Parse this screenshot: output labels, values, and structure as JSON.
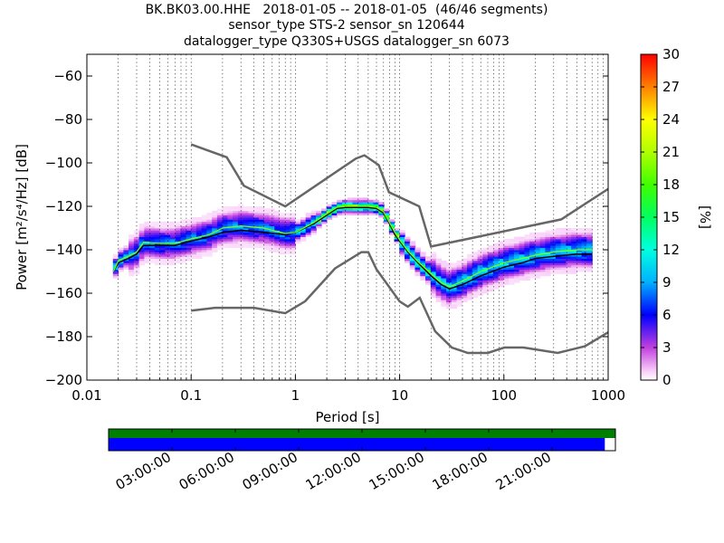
{
  "title_lines": [
    "BK.BK03.00.HHE   2018-01-05 -- 2018-01-05  (46/46 segments)",
    "sensor_type STS-2 sensor_sn 120644",
    "datalogger_type Q330S+USGS datalogger_sn 6073"
  ],
  "colors": {
    "model_curves": "#666666",
    "mean_line": "#000000",
    "mode_line": "#7fff00",
    "coverage_data": "#0000ff",
    "coverage_full": "#008000"
  },
  "chart_data": [
    {
      "type": "heatmap",
      "chart": "probabilistic power spectral density",
      "xlabel": "Period [s]",
      "ylabel": "Power [m²/s⁴/Hz] [dB]",
      "xscale": "log",
      "xlim": [
        0.01,
        1000
      ],
      "ylim": [
        -200,
        -50
      ],
      "xticks": [
        0.01,
        0.1,
        1,
        10,
        100,
        1000
      ],
      "xtick_labels": [
        "0.01",
        "0.1",
        "1",
        "10",
        "100",
        "1000"
      ],
      "yticks": [
        -200,
        -180,
        -160,
        -140,
        -120,
        -100,
        -80,
        -60
      ],
      "ytick_labels": [
        "−200",
        "−180",
        "−160",
        "−140",
        "−120",
        "−100",
        "−80",
        "−60"
      ],
      "grid": "dotted vertical",
      "colorbar": {
        "label": "[%]",
        "range": [
          0,
          30
        ],
        "ticks": [
          "0",
          "3",
          "6",
          "9",
          "12",
          "15",
          "18",
          "21",
          "24",
          "27",
          "30"
        ],
        "colormap": "pqlx"
      },
      "series": [
        {
          "line": "high-noise-model",
          "x": [
            0.1,
            0.22,
            0.32,
            0.8,
            3.8,
            4.6,
            6.3,
            7.9,
            15.4,
            20,
            354.8,
            1000
          ],
          "y": [
            -91.5,
            -97.4,
            -110.5,
            -120,
            -98,
            -96.5,
            -101,
            -113.5,
            -120,
            -138.5,
            -126,
            -112
          ]
        },
        {
          "line": "low-noise-model",
          "x": [
            0.1,
            0.17,
            0.4,
            0.8,
            1.24,
            2.4,
            4.3,
            5,
            6,
            10,
            12,
            15.6,
            21.9,
            31.6,
            45,
            70,
            101,
            154,
            328,
            600,
            1000
          ],
          "y": [
            -168,
            -166.7,
            -166.7,
            -169.2,
            -163.7,
            -148.6,
            -141.1,
            -141.1,
            -149,
            -163.8,
            -166.2,
            -162.1,
            -177.5,
            -185,
            -187.5,
            -187.5,
            -185,
            -185,
            -187.5,
            -184.4,
            -178
          ]
        },
        {
          "line": "mean",
          "x": [
            0.018,
            0.02,
            0.025,
            0.03,
            0.035,
            0.05,
            0.07,
            0.1,
            0.15,
            0.2,
            0.3,
            0.5,
            0.8,
            1,
            1.5,
            2,
            2.5,
            3,
            5,
            6,
            7,
            8,
            9,
            10,
            12,
            15,
            20,
            25,
            30,
            40,
            60,
            100,
            150,
            200,
            300,
            500,
            700
          ],
          "y": [
            -150,
            -146,
            -144,
            -142,
            -138,
            -138,
            -138,
            -136,
            -134,
            -132,
            -131,
            -132,
            -133,
            -132,
            -128,
            -124,
            -121,
            -120.5,
            -120.5,
            -121,
            -123,
            -128,
            -133,
            -136,
            -141,
            -146,
            -152,
            -156,
            -158,
            -156,
            -152,
            -148,
            -146,
            -144,
            -143,
            -142,
            -142
          ]
        },
        {
          "line": "mode",
          "x": [
            0.018,
            0.02,
            0.025,
            0.03,
            0.035,
            0.05,
            0.07,
            0.1,
            0.15,
            0.2,
            0.3,
            0.5,
            0.8,
            1,
            1.5,
            2,
            2.5,
            3,
            5,
            6,
            7,
            8,
            9,
            10,
            12,
            15,
            20,
            25,
            30,
            40,
            60,
            100,
            150,
            200,
            300,
            500,
            700
          ],
          "y": [
            -150,
            -145,
            -143,
            -141,
            -136.5,
            -137,
            -137,
            -135,
            -133,
            -130,
            -129,
            -130,
            -132.5,
            -132,
            -127.5,
            -123.5,
            -120.5,
            -120,
            -120,
            -120.5,
            -122.5,
            -127.5,
            -132,
            -135.5,
            -140.5,
            -145.5,
            -151,
            -155,
            -157,
            -154.5,
            -150,
            -146,
            -144,
            -142.5,
            -141,
            -140,
            -140
          ]
        }
      ]
    },
    {
      "type": "bar",
      "chart": "data coverage timeline",
      "x_tick_labels": [
        "03:00:00",
        "06:00:00",
        "09:00:00",
        "12:00:00",
        "15:00:00",
        "18:00:00",
        "21:00:00"
      ],
      "x_tick_hours": [
        3,
        6,
        9,
        12,
        15,
        18,
        21
      ],
      "x_range_hours": [
        0,
        24
      ],
      "data_coverage_hours": [
        0,
        23.5
      ],
      "full_coverage_hours": [
        0,
        24
      ]
    }
  ]
}
